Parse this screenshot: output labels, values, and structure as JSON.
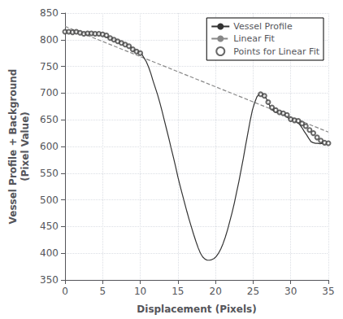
{
  "chart_data": {
    "type": "line",
    "xlabel": "Displacement (Pixels)",
    "ylabel": "Vessel Profile + Background\n(Pixel Value)",
    "xlim": [
      0,
      35
    ],
    "ylim": [
      350,
      850
    ],
    "xticks": [
      0,
      5,
      10,
      15,
      20,
      25,
      30,
      35
    ],
    "yticks": [
      350,
      400,
      450,
      500,
      550,
      600,
      650,
      700,
      750,
      800,
      850
    ],
    "grid": true,
    "legend": "upper right",
    "series": [
      {
        "name": "Vessel Profile",
        "type": "line",
        "color": "#333333",
        "line_style": "solid",
        "x": [
          0.0,
          0.3,
          0.6,
          0.9,
          1.2,
          1.5,
          1.8,
          2.1,
          2.4,
          2.7,
          3.0,
          3.3,
          3.6,
          3.9,
          4.2,
          4.5,
          4.8,
          5.1,
          5.4,
          5.7,
          6.0,
          6.3,
          6.6,
          6.9,
          7.2,
          7.5,
          7.8,
          8.1,
          8.4,
          8.7,
          9.0,
          9.3,
          9.6,
          9.9,
          10.2,
          10.5,
          10.8,
          11.1,
          11.4,
          11.7,
          12.0,
          12.3,
          12.6,
          12.9,
          13.2,
          13.5,
          13.8,
          14.1,
          14.4,
          14.7,
          15.0,
          15.3,
          15.6,
          15.9,
          16.2,
          16.5,
          16.8,
          17.1,
          17.4,
          17.7,
          18.0,
          18.3,
          18.6,
          18.9,
          19.2,
          19.5,
          19.8,
          20.1,
          20.4,
          20.7,
          21.0,
          21.3,
          21.6,
          21.9,
          22.2,
          22.5,
          22.8,
          23.1,
          23.4,
          23.7,
          24.0,
          24.3,
          24.6,
          24.9,
          25.2,
          25.5,
          25.8,
          26.1,
          26.4,
          26.7,
          27.0,
          27.3,
          27.6,
          27.9,
          28.2,
          28.5,
          28.8,
          29.1,
          29.4,
          29.7,
          30.0,
          30.3,
          30.6,
          30.9,
          31.2,
          31.5,
          31.8,
          32.1,
          32.4,
          32.7,
          33.0,
          33.3,
          33.6,
          33.9,
          34.2,
          34.5,
          34.8
        ],
        "values": [
          815,
          815,
          814,
          813,
          815,
          816,
          814,
          813,
          812,
          811,
          812,
          811,
          812,
          811,
          810,
          811,
          810,
          808,
          806,
          804,
          803,
          801,
          800,
          799,
          797,
          795,
          793,
          791,
          790,
          787,
          782,
          779,
          778,
          776,
          773,
          766,
          759,
          749,
          737,
          723,
          710,
          697,
          682,
          666,
          649,
          632,
          615,
          597,
          580,
          562,
          543,
          526,
          510,
          494,
          478,
          463,
          449,
          435,
          422,
          410,
          400,
          393,
          389,
          387,
          387,
          388,
          390,
          394,
          400,
          408,
          418,
          430,
          444,
          460,
          476,
          494,
          514,
          534,
          556,
          578,
          602,
          625,
          648,
          668,
          682,
          693,
          698,
          700,
          697,
          691,
          683,
          673,
          668,
          665,
          664,
          663,
          662,
          660,
          657,
          653,
          651,
          650,
          648,
          645,
          641,
          635,
          628,
          622,
          615,
          609,
          607,
          606,
          606,
          605,
          606,
          606,
          606
        ]
      },
      {
        "name": "Linear Fit",
        "type": "line",
        "color": "#888888",
        "line_style": "dashed",
        "x": [
          0,
          35
        ],
        "values": [
          825,
          627
        ]
      },
      {
        "name": "Points for Linear Fit",
        "type": "scatter",
        "color": "#444444",
        "marker": "open circle",
        "x": [
          0.0,
          0.5,
          1.0,
          1.5,
          2.0,
          2.5,
          3.0,
          3.5,
          4.0,
          4.5,
          5.0,
          5.5,
          6.0,
          6.5,
          7.0,
          7.5,
          8.0,
          8.5,
          9.0,
          9.5,
          10.0,
          26.0,
          26.5,
          27.0,
          27.5,
          28.0,
          28.5,
          29.0,
          29.5,
          30.0,
          30.5,
          31.0,
          31.5,
          32.0,
          32.5,
          33.0,
          33.5,
          34.0,
          34.5,
          35.0
        ],
        "values": [
          815,
          815,
          814,
          815,
          813,
          811,
          812,
          812,
          811,
          811,
          810,
          808,
          803,
          800,
          797,
          794,
          791,
          788,
          782,
          778,
          775,
          698,
          695,
          683,
          673,
          668,
          664,
          662,
          659,
          651,
          649,
          648,
          643,
          638,
          631,
          625,
          617,
          611,
          607,
          606
        ]
      }
    ]
  }
}
